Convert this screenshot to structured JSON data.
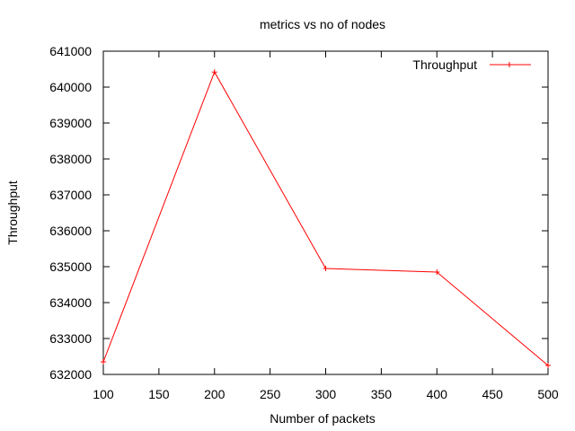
{
  "chart_data": {
    "type": "line",
    "title": "metrics vs no of nodes",
    "xlabel": "Number of packets",
    "ylabel": "Throughput",
    "x": [
      100,
      200,
      300,
      400,
      500
    ],
    "series": [
      {
        "name": "Throughput",
        "values": [
          632350,
          640420,
          634950,
          634850,
          632250
        ],
        "color": "#ff0000"
      }
    ],
    "xlim": [
      100,
      500
    ],
    "ylim": [
      632000,
      641000
    ],
    "xticks": [
      100,
      150,
      200,
      250,
      300,
      350,
      400,
      450,
      500
    ],
    "yticks": [
      632000,
      633000,
      634000,
      635000,
      636000,
      637000,
      638000,
      639000,
      640000,
      641000
    ],
    "grid": false,
    "legend": "top-right",
    "marker": "plus"
  }
}
